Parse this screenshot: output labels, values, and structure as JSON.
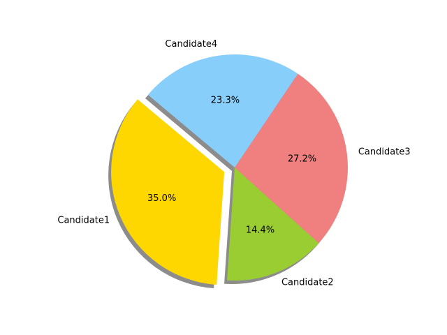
{
  "chart_data": {
    "type": "pie",
    "title": "",
    "start_angle_deg": 140,
    "direction": "counterclockwise",
    "shadow": true,
    "slices": [
      {
        "label": "Candidate1",
        "value": 35.0,
        "percent_label": "35.0%",
        "color": "#FFD700",
        "explode": 0.1
      },
      {
        "label": "Candidate2",
        "value": 14.4,
        "percent_label": "14.4%",
        "color": "#9ACD32",
        "explode": 0
      },
      {
        "label": "Candidate3",
        "value": 27.2,
        "percent_label": "27.2%",
        "color": "#F08080",
        "explode": 0
      },
      {
        "label": "Candidate4",
        "value": 23.3,
        "percent_label": "23.3%",
        "color": "#87CEFA",
        "explode": 0
      }
    ]
  }
}
